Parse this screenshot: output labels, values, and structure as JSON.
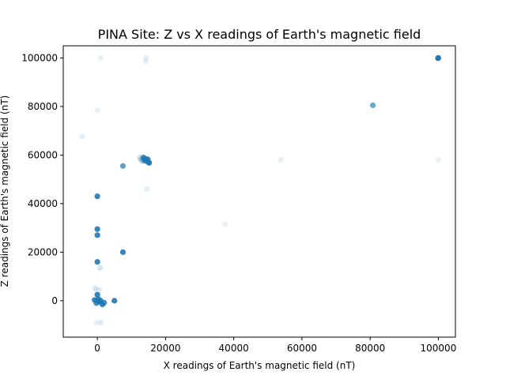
{
  "chart_data": {
    "type": "scatter",
    "title": "PINA Site: Z vs X readings of Earth's magnetic field",
    "xlabel": "X readings of Earth's magnetic field (nT)",
    "ylabel": "Z readings of Earth's magnetic field (nT)",
    "xlim": [
      -10000,
      105000
    ],
    "ylim": [
      -15000,
      105000
    ],
    "xticks": [
      0,
      20000,
      40000,
      60000,
      80000,
      100000
    ],
    "xtick_labels": [
      "0",
      "20000",
      "40000",
      "60000",
      "80000",
      "100000"
    ],
    "yticks": [
      0,
      20000,
      40000,
      60000,
      80000,
      100000
    ],
    "ytick_labels": [
      "0",
      "20000",
      "40000",
      "60000",
      "80000",
      "100000"
    ],
    "grid": false,
    "legend": "none",
    "color": "#1f77b4",
    "series": [
      {
        "points": [
          {
            "x": 100000,
            "y": 100000,
            "alpha": 0.9
          },
          {
            "x": 99900,
            "y": 99900,
            "alpha": 0.9
          },
          {
            "x": 80800,
            "y": 80500,
            "alpha": 0.65
          },
          {
            "x": 14000,
            "y": 58500,
            "alpha": 0.9
          },
          {
            "x": 14500,
            "y": 57500,
            "alpha": 0.9
          },
          {
            "x": 15000,
            "y": 57000,
            "alpha": 0.9
          },
          {
            "x": 13500,
            "y": 59000,
            "alpha": 0.8
          },
          {
            "x": 14800,
            "y": 58200,
            "alpha": 0.9
          },
          {
            "x": 15200,
            "y": 56800,
            "alpha": 0.9
          },
          {
            "x": 13800,
            "y": 57800,
            "alpha": 0.8
          },
          {
            "x": 12800,
            "y": 58200,
            "alpha": 0.3
          },
          {
            "x": 13200,
            "y": 57500,
            "alpha": 0.3
          },
          {
            "x": 12500,
            "y": 59000,
            "alpha": 0.2
          },
          {
            "x": 7500,
            "y": 55500,
            "alpha": 0.7
          },
          {
            "x": 0,
            "y": 43000,
            "alpha": 0.9
          },
          {
            "x": 0,
            "y": 29500,
            "alpha": 0.9
          },
          {
            "x": 0,
            "y": 27000,
            "alpha": 0.9
          },
          {
            "x": 7500,
            "y": 20000,
            "alpha": 0.9
          },
          {
            "x": 0,
            "y": 16000,
            "alpha": 0.9
          },
          {
            "x": 0,
            "y": 2500,
            "alpha": 0.9
          },
          {
            "x": 0,
            "y": 0,
            "alpha": 0.9
          },
          {
            "x": -800,
            "y": 300,
            "alpha": 0.9
          },
          {
            "x": 500,
            "y": -500,
            "alpha": 0.9
          },
          {
            "x": 1000,
            "y": 0,
            "alpha": 0.9
          },
          {
            "x": 1500,
            "y": -1500,
            "alpha": 0.9
          },
          {
            "x": 2000,
            "y": -800,
            "alpha": 0.8
          },
          {
            "x": -300,
            "y": -1000,
            "alpha": 0.8
          },
          {
            "x": 300,
            "y": 700,
            "alpha": 0.8
          },
          {
            "x": 5000,
            "y": 0,
            "alpha": 0.9
          },
          {
            "x": 800,
            "y": 13500,
            "alpha": 0.2
          },
          {
            "x": -600,
            "y": 5000,
            "alpha": 0.2
          },
          {
            "x": 600,
            "y": 4500,
            "alpha": 0.15
          },
          {
            "x": 1000,
            "y": -9000,
            "alpha": 0.15
          },
          {
            "x": -300,
            "y": -9000,
            "alpha": 0.1
          },
          {
            "x": -4500,
            "y": 67500,
            "alpha": 0.12
          },
          {
            "x": 0,
            "y": 78500,
            "alpha": 0.1
          },
          {
            "x": 1000,
            "y": 100000,
            "alpha": 0.1
          },
          {
            "x": 14300,
            "y": 100000,
            "alpha": 0.12
          },
          {
            "x": 14200,
            "y": 98500,
            "alpha": 0.1
          },
          {
            "x": 14500,
            "y": 46000,
            "alpha": 0.12
          },
          {
            "x": 37500,
            "y": 31500,
            "alpha": 0.1
          },
          {
            "x": 53800,
            "y": 58000,
            "alpha": 0.12
          },
          {
            "x": 100000,
            "y": 58000,
            "alpha": 0.1
          }
        ]
      }
    ]
  }
}
